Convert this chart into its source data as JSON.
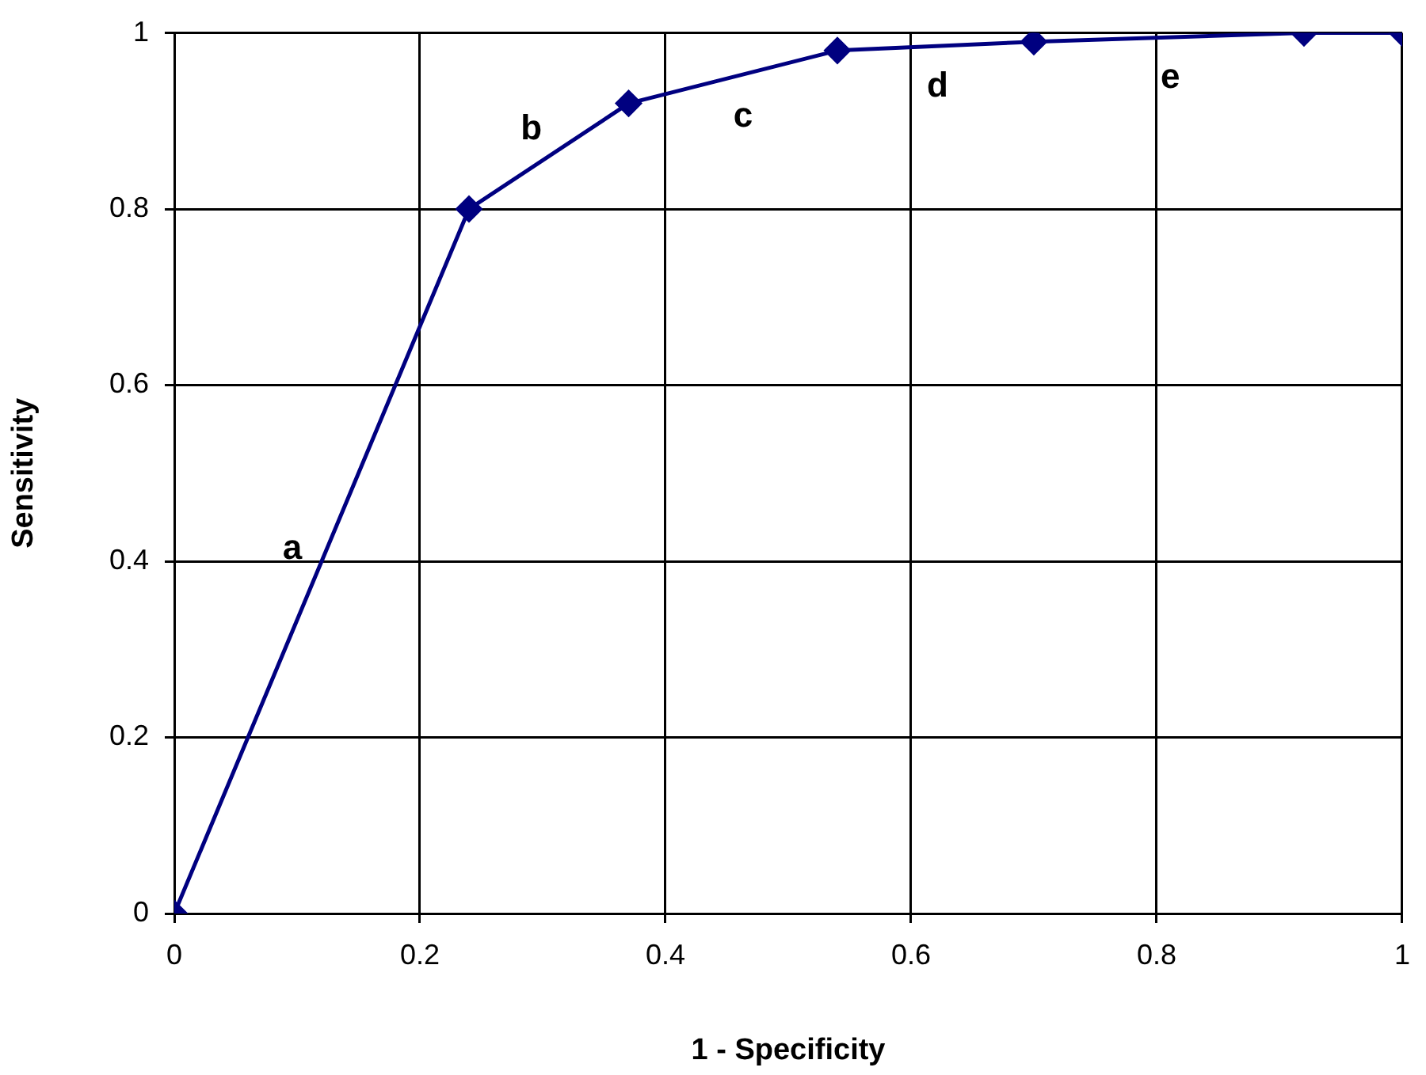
{
  "chart_data": {
    "type": "line",
    "xlabel": "1 - Specificity",
    "ylabel": "Sensitivity",
    "x": [
      0,
      0.24,
      0.37,
      0.54,
      0.7,
      0.92,
      1
    ],
    "series": [
      {
        "color": "#000080",
        "values": [
          0,
          0.8,
          0.92,
          0.98,
          0.99,
          1,
          1
        ]
      }
    ],
    "xlim": [
      0,
      1
    ],
    "xticks": [
      0,
      0.2,
      0.4,
      0.6,
      0.8,
      1
    ],
    "ylim": [
      0,
      1
    ],
    "yticks": [
      0,
      0.2,
      0.4,
      0.6,
      0.8,
      1
    ],
    "grid": true,
    "legend": false,
    "marker": "diamond",
    "line_style": "solid",
    "annotations": [
      "a",
      "b",
      "c",
      "d",
      "e"
    ]
  }
}
